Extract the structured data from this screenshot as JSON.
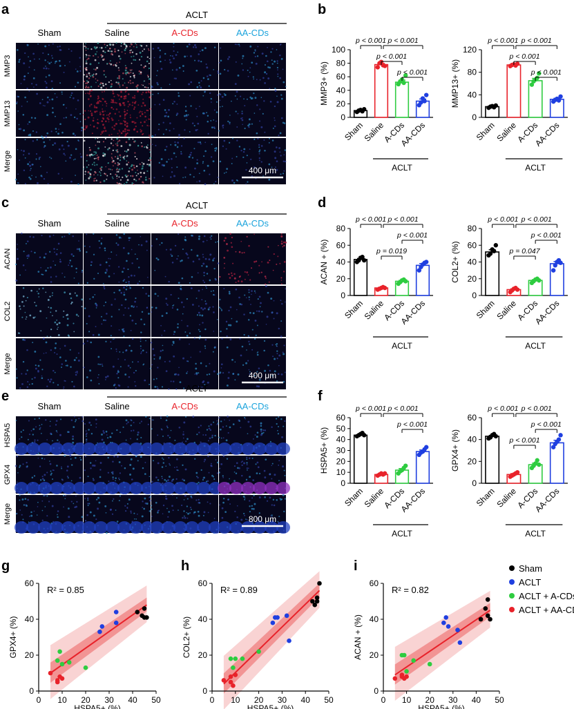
{
  "panel_letters": [
    "a",
    "b",
    "c",
    "d",
    "e",
    "f",
    "g",
    "h",
    "i"
  ],
  "micrographs": [
    {
      "panel": "a",
      "group_header": "ACLT",
      "columns": [
        {
          "label": "Sham",
          "color": "#000000"
        },
        {
          "label": "Saline",
          "color": "#000000"
        },
        {
          "label": "A-CDs",
          "color": "#e8222a"
        },
        {
          "label": "AA-CDs",
          "color": "#1aa3dc"
        }
      ],
      "rows": [
        "MMP3",
        "MMP13",
        "Merge"
      ],
      "scale_bar": "400 μm"
    },
    {
      "panel": "c",
      "group_header": "ACLT",
      "columns": [
        {
          "label": "Sham",
          "color": "#000000"
        },
        {
          "label": "Saline",
          "color": "#000000"
        },
        {
          "label": "A-CDs",
          "color": "#e8222a"
        },
        {
          "label": "AA-CDs",
          "color": "#1aa3dc"
        }
      ],
      "rows": [
        "ACAN",
        "COL2",
        "Merge"
      ],
      "scale_bar": "400 μm"
    },
    {
      "panel": "e",
      "group_header": "ACLT",
      "columns": [
        {
          "label": "Sham",
          "color": "#ffffff"
        },
        {
          "label": "Saline",
          "color": "#ffffff"
        },
        {
          "label": "A-CDs",
          "color": "#e8222a"
        },
        {
          "label": "AA-CDs",
          "color": "#1aa3dc"
        }
      ],
      "rows": [
        "HSPA5",
        "GPX4",
        "Merge"
      ],
      "scale_bar": "800 μm"
    }
  ],
  "chart_data": [
    {
      "type": "bar",
      "panel": "b",
      "ylabel": "MMP3+ (%)",
      "ylim": [
        0,
        100
      ],
      "yticks": [
        0,
        20,
        40,
        60,
        80,
        100
      ],
      "categories": [
        "Sham",
        "Saline",
        "A-CDs",
        "AA-CDs"
      ],
      "group_label": "ACLT",
      "values": [
        10,
        78,
        52,
        24
      ],
      "colors": [
        "#000000",
        "#e8222a",
        "#2ecc40",
        "#1f3fe0"
      ],
      "points": [
        [
          8,
          10,
          11,
          9,
          12
        ],
        [
          74,
          80,
          82,
          77,
          76
        ],
        [
          49,
          53,
          56,
          51,
          62
        ],
        [
          18,
          22,
          28,
          24,
          33
        ]
      ],
      "comparisons": [
        {
          "from": 0,
          "to": 1,
          "label": "p < 0.001",
          "level": 3
        },
        {
          "from": 1,
          "to": 3,
          "label": "p < 0.001",
          "level": 3
        },
        {
          "from": 1,
          "to": 2,
          "label": "p < 0.001",
          "level": 2
        },
        {
          "from": 2,
          "to": 3,
          "label": "p < 0.001",
          "level": 1
        }
      ]
    },
    {
      "type": "bar",
      "panel": "b",
      "ylabel": "MMP13+ (%)",
      "ylim": [
        0,
        120
      ],
      "yticks": [
        0,
        40,
        80,
        120
      ],
      "categories": [
        "Sham",
        "Saline",
        "A-CDs",
        "AA-CDs"
      ],
      "group_label": "ACLT",
      "values": [
        19,
        93,
        65,
        32
      ],
      "colors": [
        "#000000",
        "#e8222a",
        "#2ecc40",
        "#1f3fe0"
      ],
      "points": [
        [
          17,
          19,
          20,
          18,
          21
        ],
        [
          91,
          93,
          94,
          92,
          95
        ],
        [
          58,
          64,
          67,
          70,
          78
        ],
        [
          28,
          31,
          33,
          30,
          37
        ]
      ],
      "comparisons": [
        {
          "from": 0,
          "to": 1,
          "label": "p < 0.001",
          "level": 3
        },
        {
          "from": 1,
          "to": 3,
          "label": "p < 0.001",
          "level": 3
        },
        {
          "from": 1,
          "to": 2,
          "label": "p < 0.001",
          "level": 2
        },
        {
          "from": 2,
          "to": 3,
          "label": "p < 0.001",
          "level": 1
        }
      ]
    },
    {
      "type": "bar",
      "panel": "d",
      "ylabel": "ACAN + (%)",
      "ylim": [
        0,
        80
      ],
      "yticks": [
        0,
        20,
        40,
        60,
        80
      ],
      "categories": [
        "Sham",
        "Saline",
        "A-CDs",
        "AA-CDs"
      ],
      "group_label": "ACLT",
      "values": [
        43,
        9,
        17,
        36
      ],
      "colors": [
        "#000000",
        "#e8222a",
        "#2ecc40",
        "#1f3fe0"
      ],
      "points": [
        [
          40,
          42,
          45,
          46,
          42
        ],
        [
          7,
          8,
          9,
          10,
          9
        ],
        [
          14,
          16,
          18,
          19,
          17
        ],
        [
          30,
          34,
          37,
          39,
          40
        ]
      ],
      "comparisons": [
        {
          "from": 0,
          "to": 1,
          "label": "p < 0.001",
          "level": 3
        },
        {
          "from": 1,
          "to": 3,
          "label": "p < 0.001",
          "level": 3
        },
        {
          "from": 1,
          "to": 2,
          "label": "p = 0.019",
          "level": 1
        },
        {
          "from": 2,
          "to": 3,
          "label": "p < 0.001",
          "level": 2
        }
      ]
    },
    {
      "type": "bar",
      "panel": "d",
      "ylabel": "COL2+ (%)",
      "ylim": [
        0,
        80
      ],
      "yticks": [
        0,
        20,
        40,
        60,
        80
      ],
      "categories": [
        "Sham",
        "Saline",
        "A-CDs",
        "AA-CDs"
      ],
      "group_label": "ACLT",
      "values": [
        52,
        7,
        18,
        38
      ],
      "colors": [
        "#000000",
        "#e8222a",
        "#2ecc40",
        "#1f3fe0"
      ],
      "points": [
        [
          48,
          50,
          55,
          53,
          60
        ],
        [
          4,
          6,
          8,
          9,
          7
        ],
        [
          15,
          17,
          19,
          20,
          18
        ],
        [
          30,
          36,
          40,
          42,
          39
        ]
      ],
      "comparisons": [
        {
          "from": 0,
          "to": 1,
          "label": "p < 0.001",
          "level": 3
        },
        {
          "from": 1,
          "to": 3,
          "label": "p < 0.001",
          "level": 3
        },
        {
          "from": 1,
          "to": 2,
          "label": "p = 0.047",
          "level": 1
        },
        {
          "from": 2,
          "to": 3,
          "label": "p < 0.001",
          "level": 2
        }
      ]
    },
    {
      "type": "bar",
      "panel": "f",
      "ylabel": "HSPA5+ (%)",
      "ylim": [
        0,
        60
      ],
      "yticks": [
        0,
        10,
        20,
        30,
        40,
        50,
        60
      ],
      "categories": [
        "Sham",
        "Saline",
        "A-CDs",
        "AA-CDs"
      ],
      "group_label": "ACLT",
      "values": [
        44,
        8,
        12,
        29
      ],
      "colors": [
        "#000000",
        "#e8222a",
        "#2ecc40",
        "#1f3fe0"
      ],
      "points": [
        [
          43,
          44,
          45,
          46,
          44
        ],
        [
          7,
          8,
          9,
          8,
          9
        ],
        [
          9,
          11,
          12,
          14,
          16
        ],
        [
          26,
          28,
          29,
          31,
          33
        ]
      ],
      "comparisons": [
        {
          "from": 0,
          "to": 1,
          "label": "p < 0.001",
          "level": 3
        },
        {
          "from": 1,
          "to": 3,
          "label": "p < 0.001",
          "level": 3
        },
        {
          "from": 2,
          "to": 3,
          "label": "p < 0.001",
          "level": 2
        }
      ]
    },
    {
      "type": "bar",
      "panel": "f",
      "ylabel": "GPX4+ (%)",
      "ylim": [
        0,
        60
      ],
      "yticks": [
        0,
        20,
        40,
        60
      ],
      "categories": [
        "Sham",
        "Saline",
        "A-CDs",
        "AA-CDs"
      ],
      "group_label": "ACLT",
      "values": [
        43,
        8,
        17,
        37
      ],
      "colors": [
        "#000000",
        "#e8222a",
        "#2ecc40",
        "#1f3fe0"
      ],
      "points": [
        [
          41,
          42,
          44,
          45,
          43
        ],
        [
          6,
          7,
          8,
          9,
          10
        ],
        [
          14,
          16,
          18,
          21,
          17
        ],
        [
          33,
          36,
          38,
          40,
          44
        ]
      ],
      "comparisons": [
        {
          "from": 0,
          "to": 1,
          "label": "p < 0.001",
          "level": 3
        },
        {
          "from": 1,
          "to": 3,
          "label": "p < 0.001",
          "level": 3
        },
        {
          "from": 1,
          "to": 2,
          "label": "p < 0.001",
          "level": 1
        },
        {
          "from": 2,
          "to": 3,
          "label": "p < 0.001",
          "level": 2
        }
      ]
    },
    {
      "type": "scatter",
      "panel": "g",
      "xlabel": "HSPA5+ (%)",
      "ylabel": "GPX4+ (%)",
      "xlim": [
        0,
        50
      ],
      "ylim": [
        0,
        60
      ],
      "xticks": [
        0,
        10,
        20,
        30,
        40,
        50
      ],
      "yticks": [
        0,
        20,
        40,
        60
      ],
      "r2": "R² = 0.85",
      "fit": {
        "x": [
          5,
          46
        ],
        "y": [
          10,
          48
        ]
      },
      "groups": [
        {
          "color": "#000000",
          "points": [
            [
              42,
              44
            ],
            [
              44,
              42
            ],
            [
              45,
              41
            ],
            [
              46,
              41
            ],
            [
              45,
              46
            ]
          ]
        },
        {
          "color": "#1f3fe0",
          "points": [
            [
              26,
              33
            ],
            [
              27,
              36
            ],
            [
              33,
              44
            ],
            [
              33,
              38
            ]
          ]
        },
        {
          "color": "#2ecc40",
          "points": [
            [
              8,
              17
            ],
            [
              9,
              22
            ],
            [
              10,
              15
            ],
            [
              13,
              16
            ],
            [
              20,
              13
            ]
          ]
        },
        {
          "color": "#e8222a",
          "points": [
            [
              5,
              10
            ],
            [
              8,
              6
            ],
            [
              9,
              8
            ],
            [
              10,
              7
            ],
            [
              8,
              5
            ]
          ]
        }
      ]
    },
    {
      "type": "scatter",
      "panel": "h",
      "xlabel": "HSPA5+ (%)",
      "ylabel": "COL2+ (%)",
      "xlim": [
        0,
        50
      ],
      "ylim": [
        0,
        60
      ],
      "xticks": [
        0,
        10,
        20,
        30,
        40,
        50
      ],
      "yticks": [
        0,
        20,
        40,
        60
      ],
      "r2": "R² = 0.89",
      "fit": {
        "x": [
          5,
          46
        ],
        "y": [
          4,
          56
        ]
      },
      "groups": [
        {
          "color": "#000000",
          "points": [
            [
              43,
              50
            ],
            [
              45,
              52
            ],
            [
              46,
              60
            ],
            [
              44,
              48
            ],
            [
              45,
              50
            ]
          ]
        },
        {
          "color": "#1f3fe0",
          "points": [
            [
              26,
              38
            ],
            [
              27,
              41
            ],
            [
              28,
              41
            ],
            [
              33,
              28
            ],
            [
              32,
              42
            ]
          ]
        },
        {
          "color": "#2ecc40",
          "points": [
            [
              8,
              18
            ],
            [
              9,
              13
            ],
            [
              10,
              18
            ],
            [
              13,
              18
            ],
            [
              20,
              22
            ]
          ]
        },
        {
          "color": "#e8222a",
          "points": [
            [
              5,
              6
            ],
            [
              8,
              8
            ],
            [
              9,
              3
            ],
            [
              8,
              5
            ],
            [
              10,
              9
            ]
          ]
        }
      ]
    },
    {
      "type": "scatter",
      "panel": "i",
      "xlabel": "HSPA5+ (%)",
      "ylabel": "ACAN + (%)",
      "xlim": [
        0,
        50
      ],
      "ylim": [
        0,
        60
      ],
      "xticks": [
        0,
        10,
        20,
        30,
        40,
        50
      ],
      "yticks": [
        0,
        20,
        40,
        60
      ],
      "r2": "R² = 0.82",
      "fit": {
        "x": [
          5,
          46
        ],
        "y": [
          9,
          45
        ]
      },
      "groups": [
        {
          "color": "#000000",
          "points": [
            [
              42,
              40
            ],
            [
              44,
              46
            ],
            [
              45,
              51
            ],
            [
              46,
              40
            ],
            [
              45,
              42
            ]
          ]
        },
        {
          "color": "#1f3fe0",
          "points": [
            [
              26,
              38
            ],
            [
              27,
              41
            ],
            [
              28,
              36
            ],
            [
              33,
              27
            ],
            [
              32,
              34
            ]
          ]
        },
        {
          "color": "#2ecc40",
          "points": [
            [
              8,
              20
            ],
            [
              9,
              20
            ],
            [
              10,
              11
            ],
            [
              13,
              17
            ],
            [
              20,
              15
            ]
          ]
        },
        {
          "color": "#e8222a",
          "points": [
            [
              5,
              7
            ],
            [
              8,
              9
            ],
            [
              9,
              7
            ],
            [
              10,
              8
            ],
            [
              8,
              8
            ]
          ]
        }
      ]
    }
  ],
  "legend": [
    {
      "label": "Sham",
      "color": "#000000"
    },
    {
      "label": "ACLT",
      "color": "#1f3fe0"
    },
    {
      "label": "ACLT + A-CDs",
      "color": "#2ecc40"
    },
    {
      "label": "ACLT + AA-CDs",
      "color": "#e8222a"
    }
  ]
}
